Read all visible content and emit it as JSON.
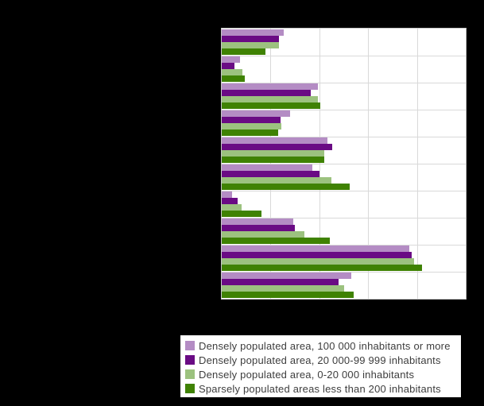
{
  "canvas": {
    "background_color": "#000000",
    "plot_background_color": "#ffffff",
    "gridline_color": "#d9d9d9",
    "plot_border_color": "#c9c9c9",
    "note": "Axis tick labels and category labels are not visible (black on black); only plot, bars and legend are visible."
  },
  "chart_data": {
    "type": "bar",
    "orientation": "horizontal",
    "title": "",
    "xlabel": "",
    "ylabel": "",
    "xlim": [
      0,
      100
    ],
    "gridline_interval": 20,
    "tick_labels_visible": false,
    "category_labels_visible": false,
    "num_groups": 10,
    "legend_position": "bottom",
    "series": [
      {
        "name": "Densely populated area, 100 000 inhabitants or more",
        "color": "#b48cc4",
        "values": [
          25.3,
          7.6,
          39.3,
          28.1,
          43.2,
          37.2,
          4.1,
          29.3,
          76.9,
          53.2
        ]
      },
      {
        "name": "Densely populated area, 20 000-99 999 inhabitants",
        "color": "#6a0b84",
        "values": [
          23.3,
          5.3,
          36.4,
          24.1,
          45.3,
          40.1,
          6.6,
          30.1,
          78.0,
          48.0
        ]
      },
      {
        "name": "Densely populated area, 0-20 000 inhabitants",
        "color": "#9cc27f",
        "values": [
          23.3,
          8.4,
          39.3,
          24.3,
          42.0,
          45.1,
          8.3,
          34.0,
          78.8,
          50.0
        ]
      },
      {
        "name": "Sparsely populated areas less than 200 inhabitants",
        "color": "#3f8203",
        "values": [
          18.0,
          9.3,
          40.3,
          23.2,
          42.0,
          52.4,
          16.3,
          44.2,
          82.1,
          54.2
        ]
      }
    ]
  }
}
